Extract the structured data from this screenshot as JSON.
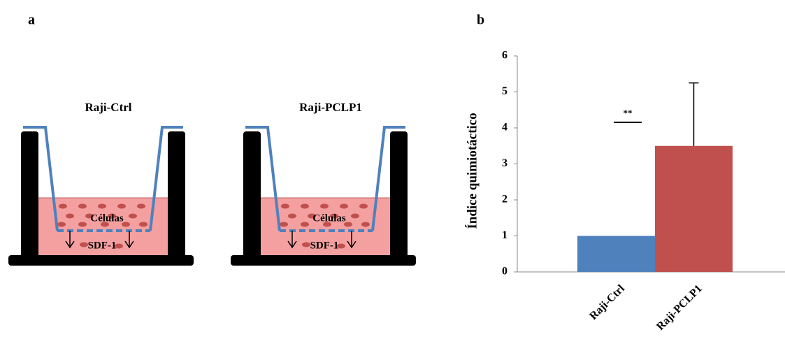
{
  "panel_a": {
    "label": "a",
    "wells": [
      {
        "title": "Raji-Ctrl",
        "cells": "Células",
        "chemokine": "SDF-1"
      },
      {
        "title": "Raji-PCLP1",
        "cells": "Células",
        "chemokine": "SDF-1"
      }
    ]
  },
  "chart_data": {
    "type": "bar",
    "panel_label": "b",
    "ylabel": "Índice quimiotáctico",
    "categories": [
      "Raji-Ctrl",
      "Raji-PCLP1"
    ],
    "values": [
      1,
      3.5
    ],
    "errors": [
      null,
      1.75
    ],
    "colors": [
      "#4f81bd",
      "#c0504d"
    ],
    "ylim": [
      0,
      6
    ],
    "yticks": [
      0,
      1,
      2,
      3,
      4,
      5,
      6
    ],
    "annotation": "**"
  }
}
